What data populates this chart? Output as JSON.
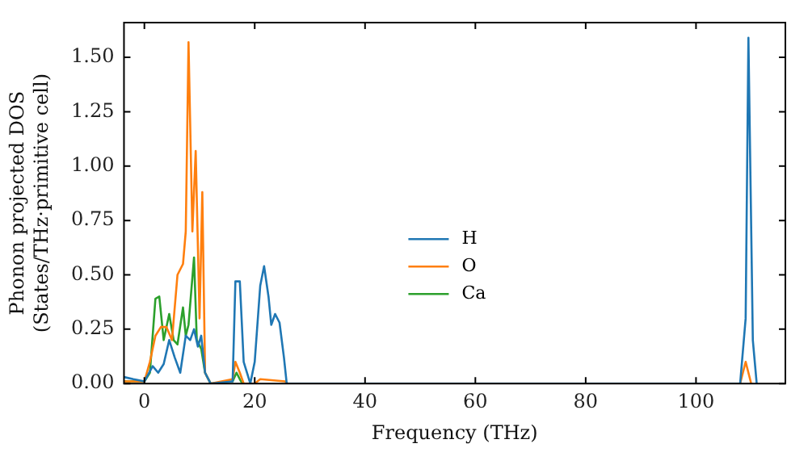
{
  "chart_data": {
    "type": "line",
    "xlabel": "Frequency (THz)",
    "ylabel": "Phonon projected DOS\n(States/THz·primitive cell)",
    "xlim": [
      -3.7,
      116.2
    ],
    "xticks": [
      0,
      20,
      40,
      60,
      80,
      100
    ],
    "ylim": [
      0,
      1.66
    ],
    "yticks": [
      {
        "value": 0,
        "label": "0.00"
      },
      {
        "value": 0.25,
        "label": "0.25"
      },
      {
        "value": 0.5,
        "label": "0.50"
      },
      {
        "value": 0.75,
        "label": "0.75"
      },
      {
        "value": 1,
        "label": "1.00"
      },
      {
        "value": 1.25,
        "label": "1.25"
      },
      {
        "value": 1.5,
        "label": "1.50"
      }
    ],
    "grid": false,
    "legend": "bottom",
    "marker": "none",
    "line_style": "solid",
    "series": [
      {
        "name": "H",
        "color": "#1f77b4",
        "x": [
          -3.7,
          -2,
          0,
          1.5,
          2.5,
          3.5,
          4.5,
          5.5,
          6.5,
          7.5,
          8.3,
          9,
          9.7,
          10.3,
          11,
          12,
          16,
          16.5,
          17.3,
          18,
          19.2,
          20,
          21,
          21.7,
          22.5,
          23,
          23.7,
          24.5,
          25.3,
          25.8,
          108,
          109,
          109.5,
          110.3,
          111
        ],
        "values": [
          0.03,
          0.02,
          0.01,
          0.08,
          0.05,
          0.09,
          0.2,
          0.12,
          0.05,
          0.22,
          0.2,
          0.25,
          0.17,
          0.22,
          0.05,
          0,
          0.01,
          0.47,
          0.47,
          0.1,
          0,
          0.1,
          0.45,
          0.54,
          0.4,
          0.27,
          0.32,
          0.28,
          0.12,
          0,
          0,
          0.3,
          1.59,
          0.2,
          0
        ]
      },
      {
        "name": "O",
        "color": "#ff7f0e",
        "x": [
          -3.7,
          0,
          1,
          2,
          3,
          4,
          5,
          6,
          7,
          7.5,
          8,
          8.7,
          9.3,
          10,
          10.5,
          11,
          12,
          16,
          16.5,
          17.3,
          18,
          20,
          21,
          25.5,
          26,
          108,
          109,
          110
        ],
        "values": [
          0.01,
          0.01,
          0.1,
          0.22,
          0.26,
          0.26,
          0.2,
          0.5,
          0.55,
          0.7,
          1.57,
          0.7,
          1.07,
          0.3,
          0.88,
          0.05,
          0,
          0.02,
          0.1,
          0.05,
          0,
          0,
          0.02,
          0.01,
          0,
          0,
          0.1,
          0
        ]
      },
      {
        "name": "Ca",
        "color": "#2ca02c",
        "x": [
          -3.7,
          0,
          1,
          2,
          2.7,
          3.5,
          4.5,
          5.3,
          6,
          7,
          7.5,
          8,
          9,
          9.5,
          10.3,
          11,
          12,
          16,
          16.7,
          17.5,
          18
        ],
        "values": [
          0.01,
          0.01,
          0.05,
          0.39,
          0.4,
          0.2,
          0.32,
          0.2,
          0.18,
          0.35,
          0.22,
          0.27,
          0.58,
          0.2,
          0.16,
          0.05,
          0,
          0.01,
          0.05,
          0.01,
          0
        ]
      }
    ]
  }
}
